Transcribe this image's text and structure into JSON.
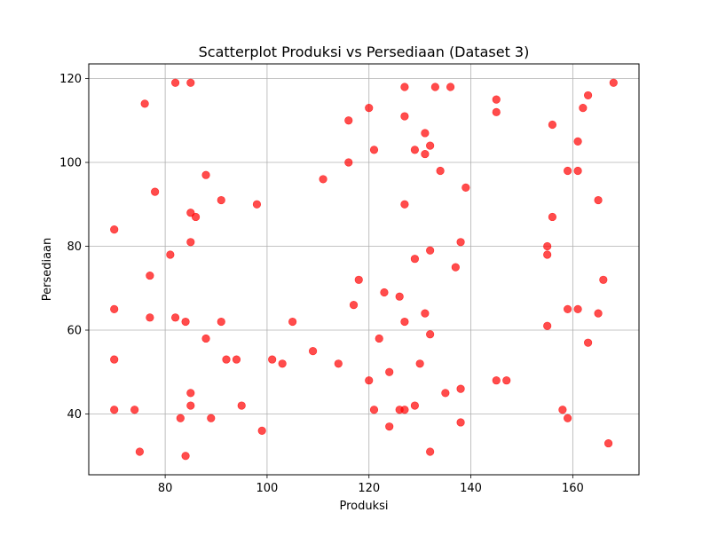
{
  "chart_data": {
    "type": "scatter",
    "title": "Scatterplot Produksi vs Persediaan (Dataset 3)",
    "xlabel": "Produksi",
    "ylabel": "Persediaan",
    "xlim": [
      65,
      173
    ],
    "ylim": [
      25.5,
      123.5
    ],
    "xticks": [
      80,
      100,
      120,
      140,
      160
    ],
    "yticks": [
      40,
      60,
      80,
      100,
      120
    ],
    "grid": true,
    "legend": "none",
    "marker_color": "#ff0000",
    "marker_opacity": 0.7,
    "series": [
      {
        "x": [
          70,
          70,
          70,
          70,
          74,
          75,
          76,
          77,
          77,
          78,
          81,
          82,
          82,
          83,
          84,
          84,
          85,
          85,
          85,
          85,
          85,
          86,
          88,
          88,
          89,
          91,
          91,
          92,
          94,
          95,
          98,
          99,
          101,
          103,
          105,
          109,
          111,
          114,
          116,
          116,
          117,
          118,
          120,
          120,
          121,
          121,
          122,
          123,
          124,
          124,
          126,
          126,
          127,
          127,
          127,
          127,
          127,
          129,
          129,
          129,
          130,
          131,
          131,
          131,
          132,
          132,
          132,
          132,
          133,
          134,
          135,
          136,
          137,
          138,
          138,
          138,
          139,
          145,
          145,
          145,
          147,
          155,
          155,
          155,
          156,
          156,
          158,
          159,
          159,
          159,
          161,
          161,
          161,
          162,
          163,
          163,
          165,
          165,
          166,
          167,
          168
        ],
        "y": [
          84,
          65,
          53,
          41,
          41,
          31,
          114,
          73,
          63,
          93,
          78,
          119,
          63,
          39,
          62,
          30,
          119,
          88,
          81,
          45,
          42,
          87,
          97,
          58,
          39,
          91,
          62,
          53,
          53,
          42,
          90,
          36,
          53,
          52,
          62,
          55,
          96,
          52,
          110,
          100,
          66,
          72,
          113,
          48,
          103,
          41,
          58,
          69,
          50,
          37,
          68,
          41,
          118,
          111,
          90,
          62,
          41,
          103,
          77,
          42,
          52,
          107,
          102,
          64,
          104,
          79,
          59,
          31,
          118,
          98,
          45,
          118,
          75,
          81,
          46,
          38,
          94,
          115,
          112,
          48,
          48,
          80,
          78,
          61,
          109,
          87,
          41,
          98,
          65,
          39,
          105,
          98,
          65,
          113,
          116,
          57,
          91,
          64,
          72,
          33,
          119
        ]
      }
    ]
  }
}
